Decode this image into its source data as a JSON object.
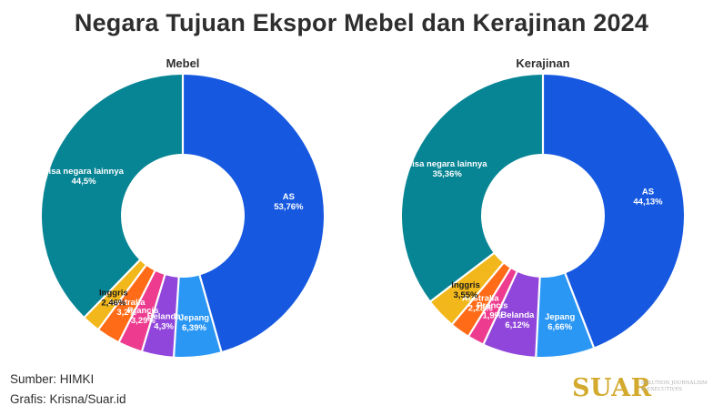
{
  "title": "Negara Tujuan Ekspor Mebel dan Kerajinan 2024",
  "footer": {
    "source": "Sumber: HIMKI",
    "credit": "Grafis: Krisna/Suar.id"
  },
  "logo": {
    "text": "SUAR",
    "tagline": [
      "SOLUTION JOURNALISM",
      "& EXECUTIVES"
    ]
  },
  "colors": {
    "AS": "#1659e0",
    "Jepang": "#2b97f5",
    "Belanda": "#9146db",
    "Prancis": "#ed3c8f",
    "Australia": "#ff6b16",
    "Inggris": "#f2b81b",
    "sisa negara lainnya": "#078594"
  },
  "chart_data": [
    {
      "type": "pie",
      "title": "Mebel",
      "slices": [
        {
          "name": "AS",
          "value": 53.76,
          "label": "AS",
          "value_label": "53,76%"
        },
        {
          "name": "Jepang",
          "value": 6.39,
          "label": "Jepang",
          "value_label": "6,39%"
        },
        {
          "name": "Belanda",
          "value": 4.3,
          "label": "Belanda",
          "value_label": "4,3%"
        },
        {
          "name": "Prancis",
          "value": 3.29,
          "label": "Prancis",
          "value_label": "3,29%"
        },
        {
          "name": "Australia",
          "value": 3.2,
          "label": "Australia",
          "value_label": "3,2%"
        },
        {
          "name": "Inggris",
          "value": 2.46,
          "label": "Inggris",
          "value_label": "2,46%"
        },
        {
          "name": "sisa negara lainnya",
          "value": 44.5,
          "label": "sisa negara lainnya",
          "value_label": "44,5%"
        }
      ]
    },
    {
      "type": "pie",
      "title": "Kerajinan",
      "slices": [
        {
          "name": "AS",
          "value": 44.13,
          "label": "AS",
          "value_label": "44,13%"
        },
        {
          "name": "Jepang",
          "value": 6.66,
          "label": "Jepang",
          "value_label": "6,66%"
        },
        {
          "name": "Belanda",
          "value": 6.12,
          "label": "Belanda",
          "value_label": "6,12%"
        },
        {
          "name": "Prancis",
          "value": 1.9,
          "label": "Prancis",
          "value_label": "1,9%"
        },
        {
          "name": "Australia",
          "value": 2.28,
          "label": "Australia",
          "value_label": "2,28%"
        },
        {
          "name": "Inggris",
          "value": 3.55,
          "label": "Inggris",
          "value_label": "3,55%"
        },
        {
          "name": "sisa negara lainnya",
          "value": 35.36,
          "label": "sisa negara lainnya",
          "value_label": "35,36%"
        }
      ]
    }
  ]
}
